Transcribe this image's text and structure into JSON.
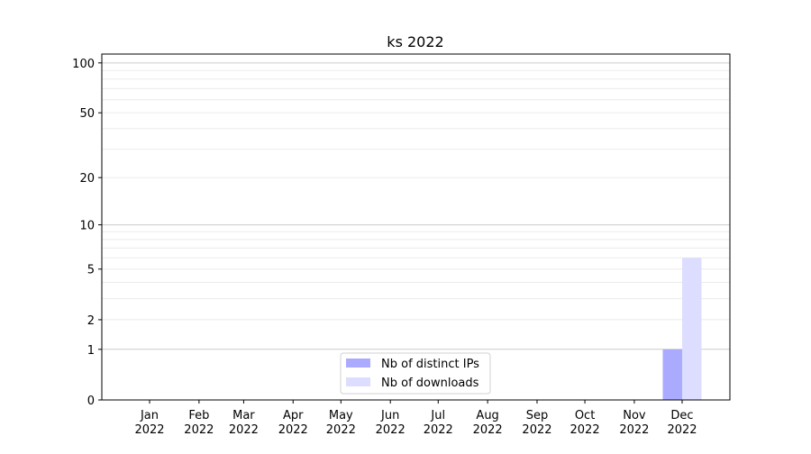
{
  "chart_data": {
    "type": "bar",
    "title": "ks 2022",
    "xlabel": "",
    "ylabel": "",
    "yscale": "log(1+y)",
    "ylim": [
      0,
      113
    ],
    "yticks": [
      0,
      1,
      2,
      5,
      10,
      20,
      50,
      100
    ],
    "grid": true,
    "legend_position": "bottom-center",
    "x_ticks": [
      {
        "date": "2022-01-01",
        "label": [
          "Jan",
          "2022"
        ]
      },
      {
        "date": "2022-02-01",
        "label": [
          "Feb",
          "2022"
        ]
      },
      {
        "date": "2022-03-01",
        "label": [
          "Mar",
          "2022"
        ]
      },
      {
        "date": "2022-04-01",
        "label": [
          "Apr",
          "2022"
        ]
      },
      {
        "date": "2022-05-01",
        "label": [
          "May",
          "2022"
        ]
      },
      {
        "date": "2022-06-01",
        "label": [
          "Jun",
          "2022"
        ]
      },
      {
        "date": "2022-07-01",
        "label": [
          "Jul",
          "2022"
        ]
      },
      {
        "date": "2022-08-01",
        "label": [
          "Aug",
          "2022"
        ]
      },
      {
        "date": "2022-09-01",
        "label": [
          "Sep",
          "2022"
        ]
      },
      {
        "date": "2022-10-01",
        "label": [
          "Oct",
          "2022"
        ]
      },
      {
        "date": "2022-11-01",
        "label": [
          "Nov",
          "2022"
        ]
      },
      {
        "date": "2022-12-01",
        "label": [
          "Dec",
          "2022"
        ]
      }
    ],
    "series": [
      {
        "name": "Nb of distinct IPs",
        "color": "#aaaaff",
        "align": "left",
        "points": [
          {
            "date": "2022-12-01",
            "value": 1
          }
        ]
      },
      {
        "name": "Nb of downloads",
        "color": "#ddddff",
        "align": "right",
        "points": [
          {
            "date": "2022-12-01",
            "value": 6
          }
        ]
      }
    ]
  }
}
